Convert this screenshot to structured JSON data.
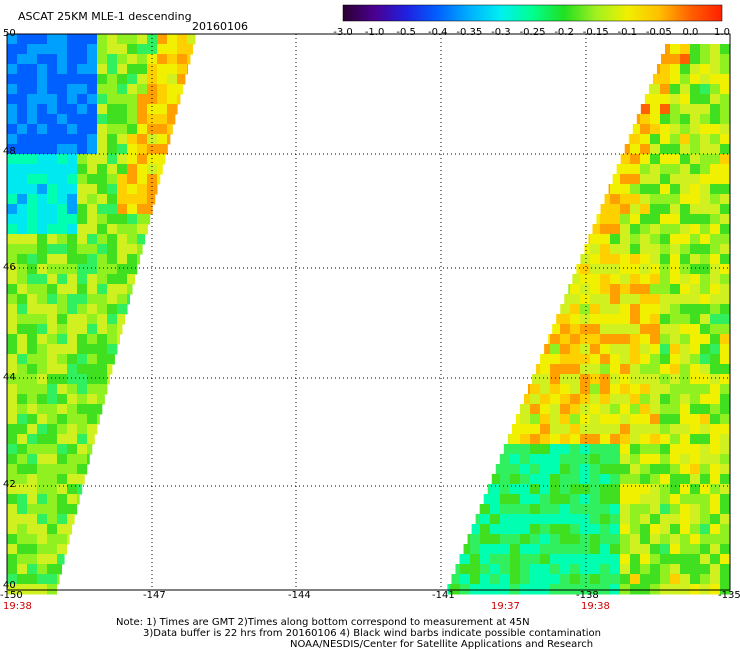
{
  "header": {
    "title": "ASCAT 25KM MLE-1 descending",
    "date": "20160106"
  },
  "colorbar": {
    "ticks": [
      "-3.0",
      "-1.0",
      "-0.5",
      "-0.4",
      "-0.35",
      "-0.3",
      "-0.25",
      "-0.2",
      "-0.15",
      "-0.1",
      "-0.05",
      "0.0",
      "1.0"
    ],
    "colors": [
      "#2a0030",
      "#4a0090",
      "#2020e0",
      "#0060ff",
      "#00b0ff",
      "#00f0f0",
      "#00ff90",
      "#20e020",
      "#a0f020",
      "#f0f000",
      "#ffc000",
      "#ff6000",
      "#ff2000"
    ]
  },
  "map": {
    "lat_labels": [
      "50",
      "48",
      "46",
      "44",
      "42",
      "40"
    ],
    "lon_labels": [
      "-150",
      "-147",
      "-144",
      "-141",
      "-138",
      "-135"
    ],
    "time_labels": [
      "19:38",
      "19:37",
      "19:38"
    ]
  },
  "footer": {
    "line1": "Note: 1) Times are GMT 2)Times along bottom correspond to measurement at 45N",
    "line2": "3)Data buffer is 22 hrs from 20160106 4) Black wind barbs indicate possible contamination",
    "line3": "NOAA/NESDIS/Center for Satellite Applications and Research"
  }
}
